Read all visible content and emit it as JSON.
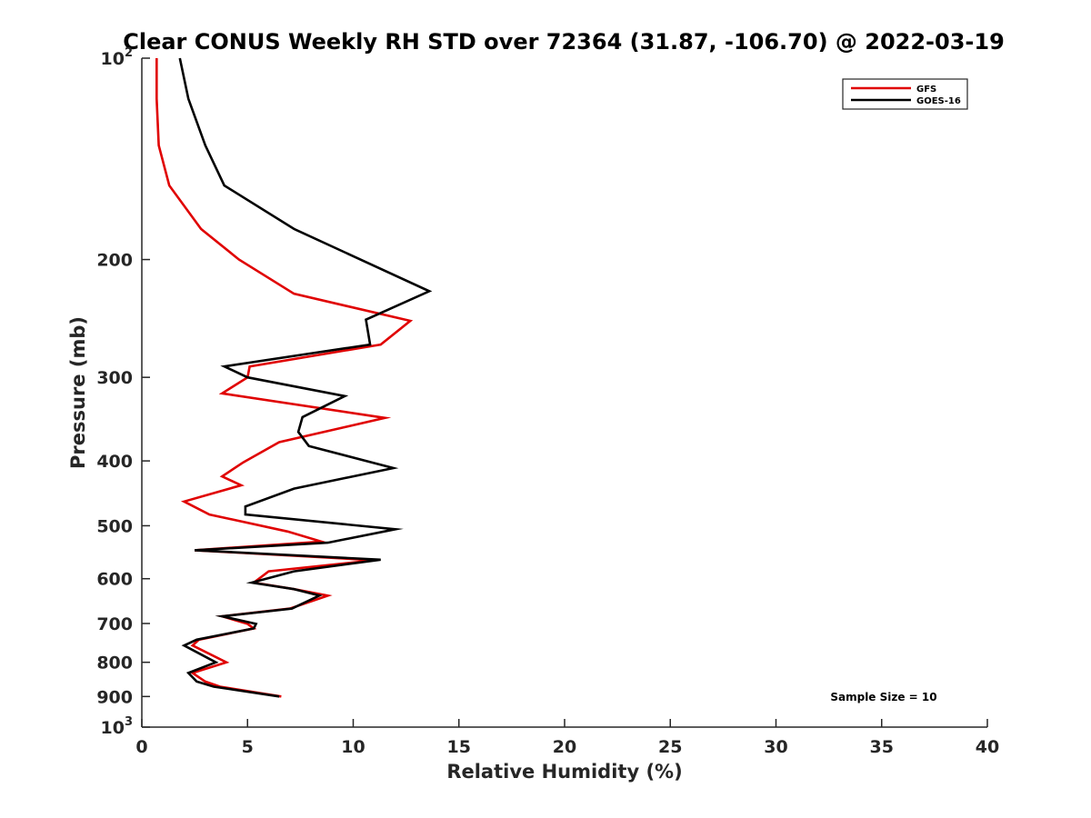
{
  "chart_data": {
    "type": "line",
    "title": "Clear CONUS Weekly RH STD over 72364 (31.87, -106.70) @ 2022-03-19",
    "xlabel": "Relative Humidity (%)",
    "ylabel": "Pressure (mb)",
    "xlim": [
      0,
      40
    ],
    "ylim": [
      100,
      1000
    ],
    "y_scale": "log",
    "y_reversed": true,
    "x_ticks": [
      "0",
      "5",
      "10",
      "15",
      "20",
      "25",
      "30",
      "35",
      "40"
    ],
    "x_tick_values": [
      0,
      5,
      10,
      15,
      20,
      25,
      30,
      35,
      40
    ],
    "y_ticks": [
      {
        "value": 100,
        "base": "10",
        "exp": "2"
      },
      {
        "value": 200,
        "label": "200"
      },
      {
        "value": 300,
        "label": "300"
      },
      {
        "value": 400,
        "label": "400"
      },
      {
        "value": 500,
        "label": "500"
      },
      {
        "value": 600,
        "label": "600"
      },
      {
        "value": 700,
        "label": "700"
      },
      {
        "value": 800,
        "label": "800"
      },
      {
        "value": 900,
        "label": "900"
      },
      {
        "value": 1000,
        "base": "10",
        "exp": "3"
      }
    ],
    "legend_position": "top-right",
    "annotation": "Sample Size = 10",
    "series": [
      {
        "name": "GFS",
        "color": "#e00000",
        "points": [
          [
            0.7,
            100
          ],
          [
            0.7,
            115
          ],
          [
            0.8,
            135
          ],
          [
            1.3,
            155
          ],
          [
            2.8,
            180
          ],
          [
            4.6,
            200
          ],
          [
            7.2,
            225
          ],
          [
            12.7,
            247
          ],
          [
            11.3,
            268
          ],
          [
            5.1,
            289
          ],
          [
            5.0,
            300
          ],
          [
            3.8,
            317
          ],
          [
            11.5,
            345
          ],
          [
            6.5,
            375
          ],
          [
            4.8,
            402
          ],
          [
            3.8,
            422
          ],
          [
            4.7,
            435
          ],
          [
            2.0,
            460
          ],
          [
            3.2,
            481
          ],
          [
            6.9,
            510
          ],
          [
            8.5,
            528
          ],
          [
            2.5,
            544
          ],
          [
            11.0,
            563
          ],
          [
            6.0,
            585
          ],
          [
            5.3,
            608
          ],
          [
            7.2,
            622
          ],
          [
            8.8,
            636
          ],
          [
            7.0,
            665
          ],
          [
            3.8,
            683
          ],
          [
            5.0,
            701
          ],
          [
            5.3,
            712
          ],
          [
            2.7,
            740
          ],
          [
            2.4,
            755
          ],
          [
            4.0,
            800
          ],
          [
            2.4,
            830
          ],
          [
            3.0,
            855
          ],
          [
            3.7,
            870
          ],
          [
            6.6,
            900
          ]
        ]
      },
      {
        "name": "GOES-16",
        "color": "#000000",
        "points": [
          [
            1.8,
            100
          ],
          [
            2.2,
            115
          ],
          [
            3.0,
            135
          ],
          [
            3.9,
            155
          ],
          [
            7.2,
            180
          ],
          [
            13.6,
            223
          ],
          [
            10.6,
            246
          ],
          [
            10.8,
            268
          ],
          [
            3.9,
            289
          ],
          [
            5.0,
            300
          ],
          [
            9.6,
            320
          ],
          [
            7.6,
            344
          ],
          [
            7.4,
            362
          ],
          [
            7.9,
            380
          ],
          [
            11.9,
            410
          ],
          [
            7.2,
            440
          ],
          [
            4.9,
            468
          ],
          [
            4.9,
            481
          ],
          [
            12.0,
            506
          ],
          [
            8.8,
            530
          ],
          [
            2.5,
            544
          ],
          [
            11.3,
            562
          ],
          [
            7.2,
            585
          ],
          [
            5.2,
            608
          ],
          [
            7.2,
            622
          ],
          [
            8.4,
            636
          ],
          [
            7.1,
            665
          ],
          [
            3.8,
            683
          ],
          [
            5.4,
            701
          ],
          [
            5.3,
            712
          ],
          [
            2.6,
            740
          ],
          [
            2.0,
            755
          ],
          [
            3.5,
            800
          ],
          [
            2.2,
            830
          ],
          [
            2.6,
            855
          ],
          [
            3.4,
            870
          ],
          [
            6.5,
            900
          ]
        ]
      }
    ]
  }
}
